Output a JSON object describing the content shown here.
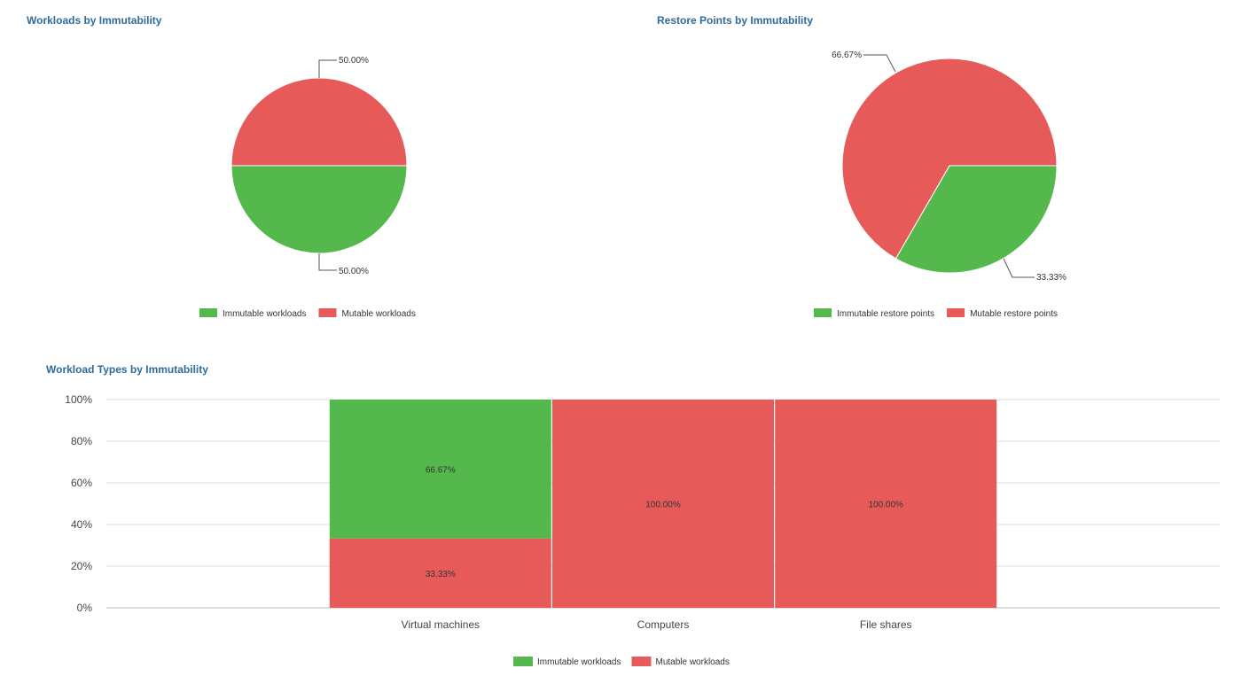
{
  "colors": {
    "immutable": "#55b84c",
    "mutable": "#e65b5a",
    "title": "#2f6b9a"
  },
  "chart_data": [
    {
      "type": "pie",
      "title": "Workloads by Immutability",
      "slices": [
        {
          "name": "Immutable workloads",
          "value": 50.0,
          "label": "50.00%"
        },
        {
          "name": "Mutable workloads",
          "value": 50.0,
          "label": "50.00%"
        }
      ],
      "legend": [
        "Immutable workloads",
        "Mutable workloads"
      ],
      "legend_position": "bottom"
    },
    {
      "type": "pie",
      "title": "Restore Points by Immutability",
      "slices": [
        {
          "name": "Immutable restore points",
          "value": 33.33,
          "label": "33.33%"
        },
        {
          "name": "Mutable restore points",
          "value": 66.67,
          "label": "66.67%"
        }
      ],
      "legend": [
        "Immutable restore points",
        "Mutable restore points"
      ],
      "legend_position": "bottom"
    },
    {
      "type": "bar",
      "stacked": true,
      "title": "Workload Types by Immutability",
      "categories": [
        "Virtual machines",
        "Computers",
        "File shares"
      ],
      "series": [
        {
          "name": "Immutable workloads",
          "values": [
            66.67,
            0,
            0
          ],
          "labels": [
            "66.67%",
            "",
            ""
          ]
        },
        {
          "name": "Mutable workloads",
          "values": [
            33.33,
            100,
            100
          ],
          "labels": [
            "33.33%",
            "100.00%",
            "100.00%"
          ]
        }
      ],
      "y_ticks": [
        "0%",
        "20%",
        "40%",
        "60%",
        "80%",
        "100%"
      ],
      "ylim": [
        0,
        100
      ],
      "grid": true,
      "legend_position": "bottom"
    }
  ]
}
